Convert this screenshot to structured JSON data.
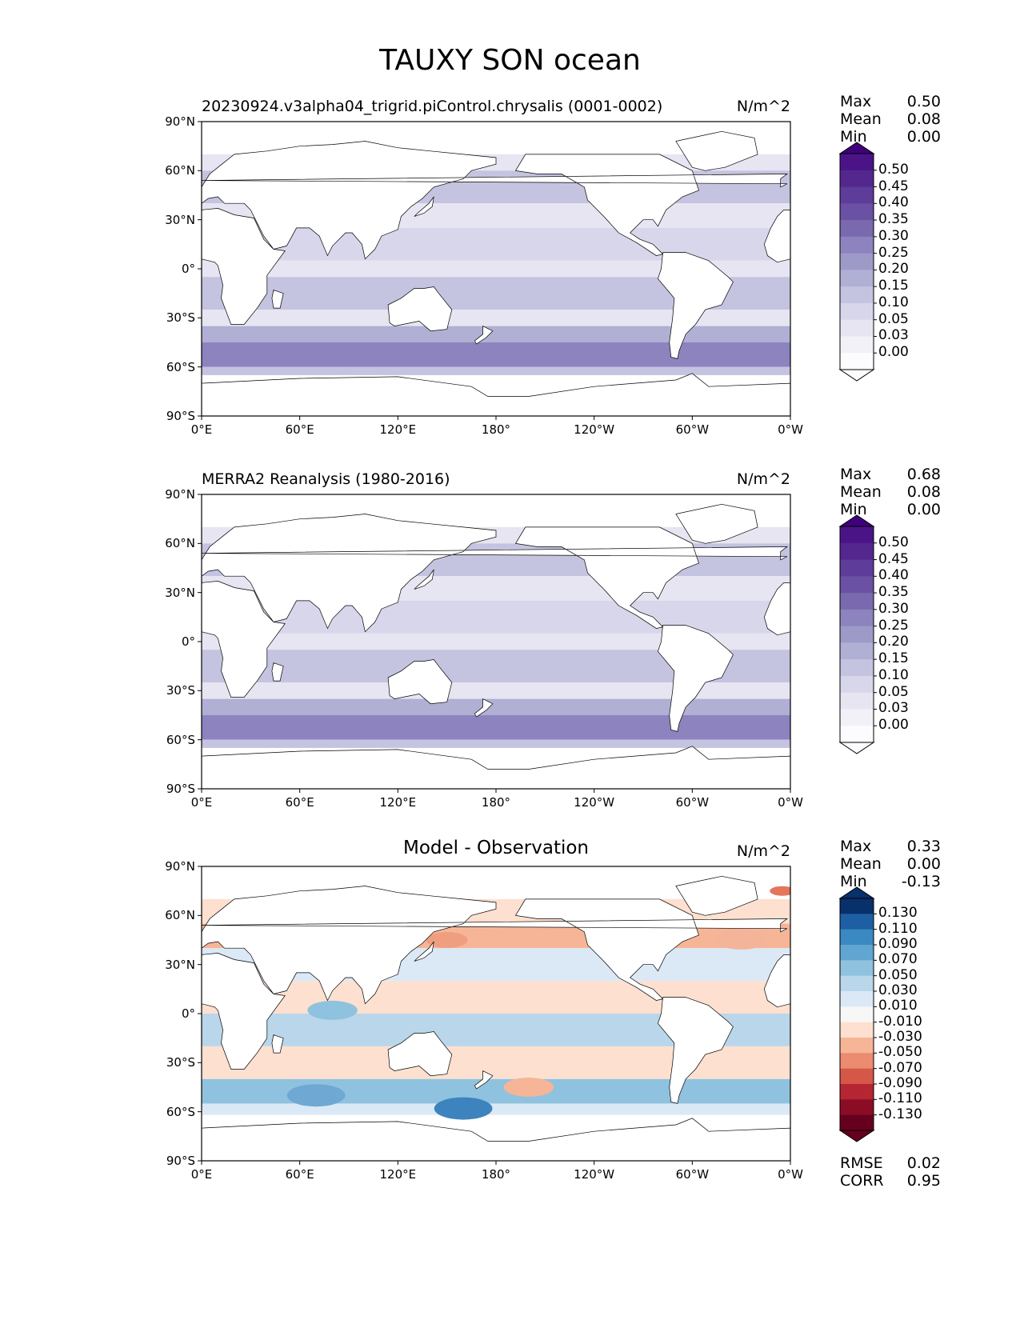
{
  "suptitle": "TAUXY SON ocean",
  "x_ticks": [
    "0°E",
    "60°E",
    "120°E",
    "180°",
    "120°W",
    "60°W",
    "0°W"
  ],
  "y_ticks": [
    "90°N",
    "60°N",
    "30°N",
    "0°",
    "30°S",
    "60°S",
    "90°S"
  ],
  "stat_labels": {
    "max": "Max",
    "mean": "Mean",
    "min": "Min"
  },
  "panels": [
    {
      "title": "20230924.v3alpha04_trigrid.piControl.chrysalis (0001-0002)",
      "units": "N/m^2",
      "stats": {
        "max": "0.50",
        "mean": "0.08",
        "min": "0.00"
      },
      "colorbar": {
        "labels": [
          "0.50",
          "0.45",
          "0.40",
          "0.35",
          "0.30",
          "0.25",
          "0.20",
          "0.15",
          "0.10",
          "0.05",
          "0.03",
          "0.00"
        ],
        "colors": [
          "#4a1486",
          "#54278f",
          "#5e3c99",
          "#6a51a3",
          "#7b69af",
          "#8c83bf",
          "#9e9ac8",
          "#b0afd4",
          "#c4c3e0",
          "#d7d6ea",
          "#e6e5f1",
          "#f2f1f8",
          "#fcfbfd"
        ],
        "extend_top": "#3f007d",
        "extend_bottom": "#fcfbfd"
      }
    },
    {
      "title": "MERRA2 Reanalysis (1980-2016)",
      "units": "N/m^2",
      "stats": {
        "max": "0.68",
        "mean": "0.08",
        "min": "0.00"
      },
      "colorbar": {
        "labels": [
          "0.50",
          "0.45",
          "0.40",
          "0.35",
          "0.30",
          "0.25",
          "0.20",
          "0.15",
          "0.10",
          "0.05",
          "0.03",
          "0.00"
        ],
        "colors": [
          "#4a1486",
          "#54278f",
          "#5e3c99",
          "#6a51a3",
          "#7b69af",
          "#8c83bf",
          "#9e9ac8",
          "#b0afd4",
          "#c4c3e0",
          "#d7d6ea",
          "#e6e5f1",
          "#f2f1f8",
          "#fcfbfd"
        ],
        "extend_top": "#3f007d",
        "extend_bottom": "#fcfbfd"
      }
    },
    {
      "title": "Model - Observation",
      "units": "N/m^2",
      "stats": {
        "max": "0.33",
        "mean": "0.00",
        "min": "-0.13"
      },
      "colorbar": {
        "labels": [
          "0.130",
          "0.110",
          "0.090",
          "0.070",
          "0.050",
          "0.030",
          "0.010",
          "-0.010",
          "-0.030",
          "-0.050",
          "-0.070",
          "-0.090",
          "-0.110",
          "-0.130"
        ],
        "colors": [
          "#08306b",
          "#1d5fa2",
          "#3a89c3",
          "#61a6d1",
          "#8fc2de",
          "#bad6ea",
          "#dbe9f6",
          "#f7f7f7",
          "#fde0d0",
          "#f7b597",
          "#eb8b6f",
          "#d55748",
          "#b52633",
          "#8a0c25",
          "#67001f"
        ],
        "extend_top": "#08306b",
        "extend_bottom": "#67001f"
      },
      "metrics": {
        "rmse_label": "RMSE",
        "rmse": "0.02",
        "corr_label": "CORR",
        "corr": "0.95"
      }
    }
  ]
}
